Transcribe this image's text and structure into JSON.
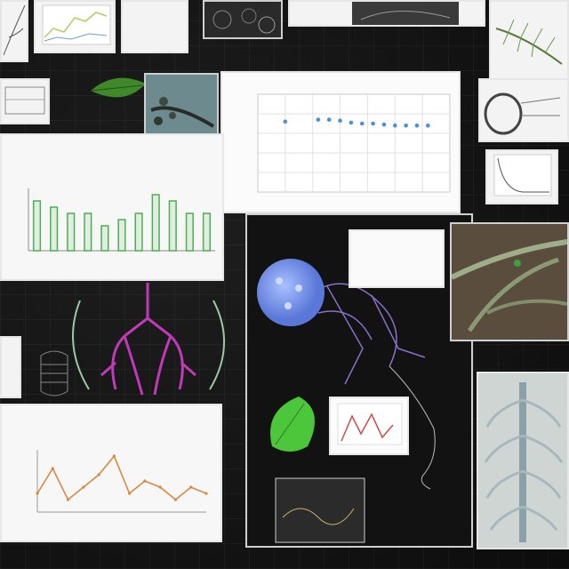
{
  "board": {
    "title": ""
  },
  "panels": {
    "top_caption": {
      "lines": [
        "",
        "",
        ""
      ]
    },
    "scatter": {
      "title": ""
    },
    "bar": {
      "heading_lines": [
        "",
        ""
      ]
    },
    "label_box": {
      "lines": [
        "",
        "",
        ""
      ]
    },
    "line_chart": {
      "heading_lines": [
        "",
        ""
      ]
    }
  },
  "chart_data": [
    {
      "type": "scatter",
      "title": "",
      "xlabel": "",
      "ylabel": "",
      "series": [
        {
          "points": [
            [
              1,
              72
            ],
            [
              2.2,
              74
            ],
            [
              2.6,
              74
            ],
            [
              3,
              73
            ],
            [
              3.4,
              71
            ],
            [
              3.8,
              70
            ],
            [
              4.2,
              70
            ],
            [
              4.6,
              69
            ],
            [
              5,
              68
            ],
            [
              5.4,
              68
            ],
            [
              5.8,
              68
            ],
            [
              6.2,
              68
            ]
          ]
        }
      ],
      "xlim": [
        0,
        7
      ],
      "ylim": [
        0,
        100
      ],
      "grid": true,
      "color": "#4a8fd8"
    },
    {
      "type": "bar",
      "title": "",
      "categories": [
        "",
        "",
        "",
        "",
        "",
        "",
        "",
        "",
        "",
        "",
        ""
      ],
      "values": [
        8,
        7,
        6,
        6,
        4,
        5,
        6,
        9,
        8,
        6,
        6
      ],
      "ylim": [
        0,
        10
      ],
      "grid": false,
      "color": "#4caf50"
    },
    {
      "type": "line",
      "title": "",
      "x": [
        1,
        2,
        3,
        4,
        5,
        6,
        7,
        8,
        9,
        10,
        11,
        12
      ],
      "series": [
        {
          "values": [
            3,
            7,
            2,
            4,
            6,
            9,
            3,
            5,
            4,
            2,
            4,
            3
          ]
        }
      ],
      "ylim": [
        0,
        10
      ],
      "grid": false,
      "color": "#d9883e"
    }
  ],
  "colors": {
    "background": "#141414",
    "panel_white": "#f3f3f3",
    "lung_magenta": "#c03ab8",
    "pollen_blue": "#6e8fe8",
    "leaf_green": "#4cc63a",
    "neuron_purple": "#8a70c8"
  }
}
